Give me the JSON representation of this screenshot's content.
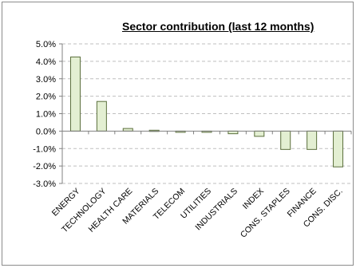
{
  "chart_data": {
    "type": "bar",
    "title": "Sector contribution (last 12 months)",
    "xlabel": "",
    "ylabel": "",
    "categories": [
      "ENERGY",
      "TECHNOLOGY",
      "HEALTH CARE",
      "MATERIALS",
      "TELECOM",
      "UTILITIES",
      "INDUSTRIALS",
      "INDEX",
      "CONS. STAPLES",
      "FINANCE",
      "CONS. DISC."
    ],
    "values": [
      4.25,
      1.7,
      0.15,
      0.05,
      -0.05,
      -0.05,
      -0.15,
      -0.3,
      -1.05,
      -1.05,
      -2.05
    ],
    "ylim": [
      -3,
      5
    ],
    "yticks": [
      5,
      4,
      3,
      2,
      1,
      0,
      -1,
      -2,
      -3
    ],
    "ytick_labels": [
      "5.0%",
      "4.0%",
      "3.0%",
      "2.0%",
      "1.0%",
      "0.0%",
      "-1.0%",
      "-2.0%",
      "-3.0%"
    ],
    "grid": true,
    "legend": "none",
    "colors": {
      "bar_fill": "#e3efd2",
      "bar_stroke": "#5a6e3b",
      "grid": "#bfbfbf",
      "axis": "#808080"
    }
  }
}
